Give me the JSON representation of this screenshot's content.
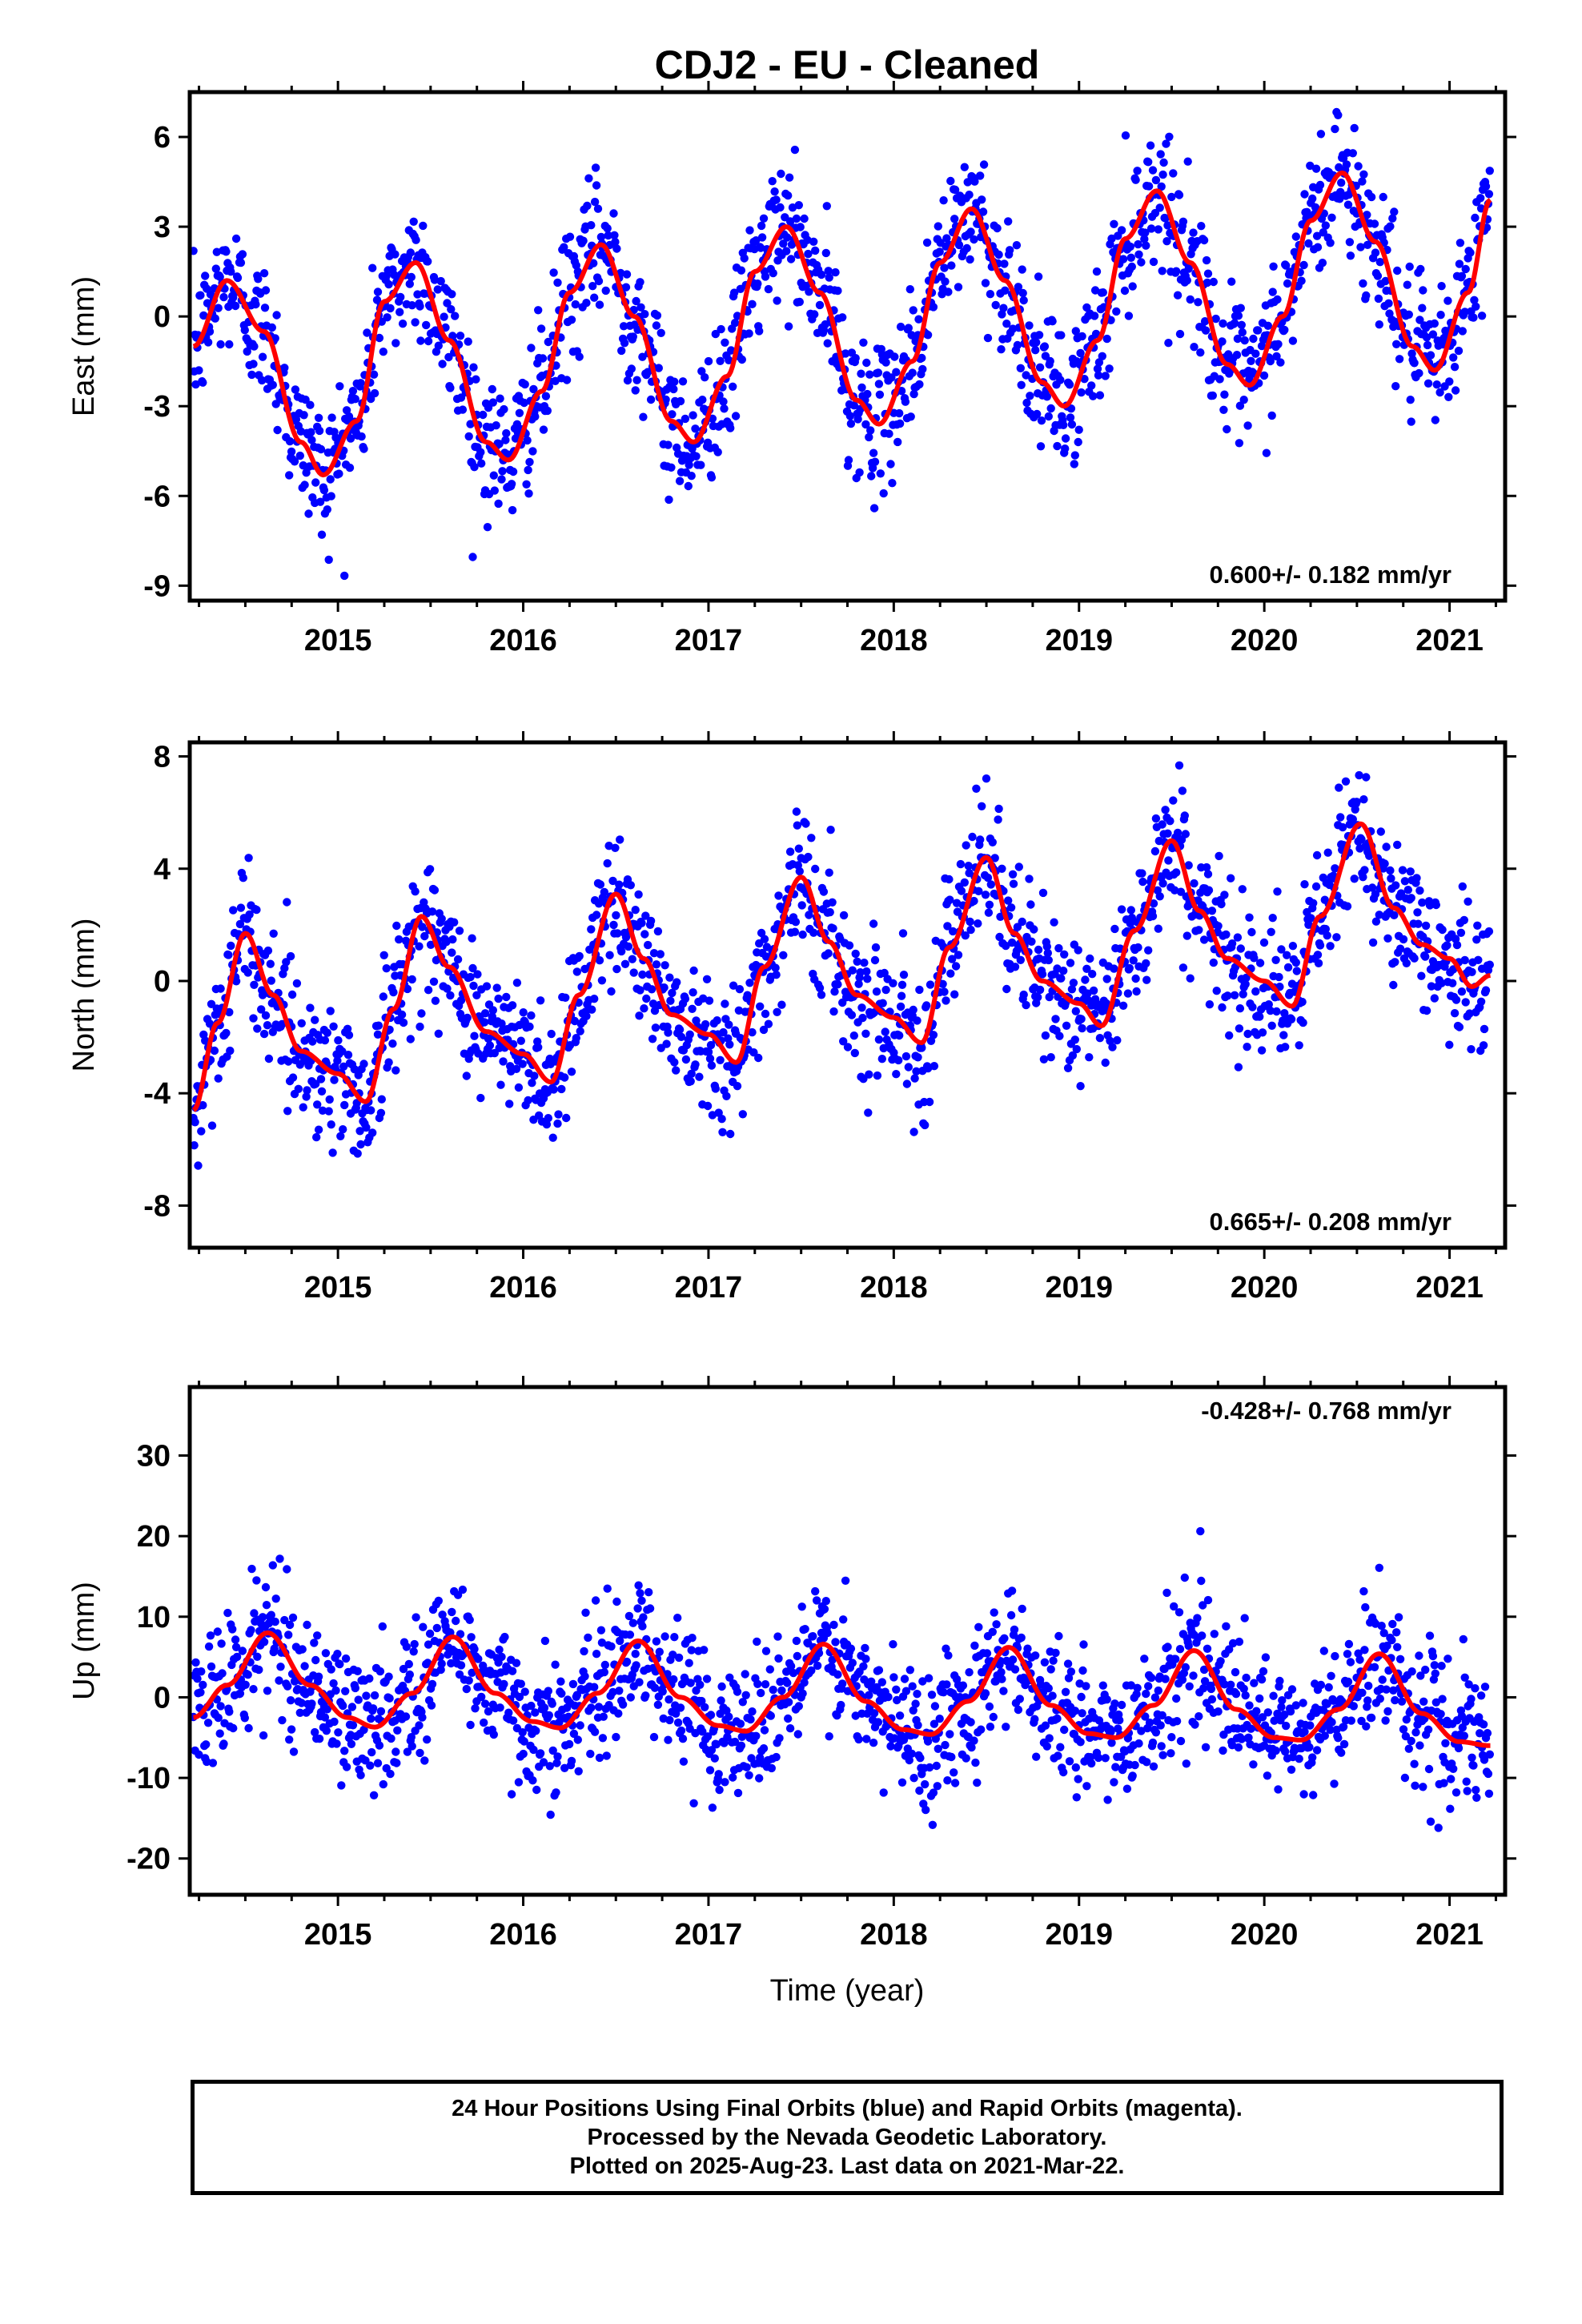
{
  "title": "CDJ2  - EU - Cleaned",
  "xlabel": "Time (year)",
  "footer": [
    "24 Hour Positions Using Final Orbits (blue) and Rapid Orbits (magenta).",
    "Processed by the Nevada Geodetic Laboratory.",
    "Plotted on 2025-Aug-23. Last data on 2021-Mar-22."
  ],
  "colors": {
    "points": "#0000ff",
    "fit": "#ff0000",
    "frame": "#000000"
  },
  "chart_data": [
    {
      "type": "scatter",
      "ylabel": "East (mm)",
      "rate_label": "0.600+/- 0.182 mm/yr",
      "xlim": [
        2014.2,
        2021.3
      ],
      "ylim": [
        -9.5,
        7.5
      ],
      "yticks": [
        6,
        3,
        0,
        -3,
        -6,
        -9
      ],
      "xticks": [
        2015,
        2016,
        2017,
        2018,
        2019,
        2020,
        2021
      ],
      "series": [
        {
          "values": [
            [
              2014.22,
              -1.0
            ],
            [
              2014.4,
              1.2
            ],
            [
              2014.6,
              -0.5
            ],
            [
              2014.8,
              -4.2
            ],
            [
              2014.92,
              -5.3
            ],
            [
              2015.1,
              -3.5
            ],
            [
              2015.25,
              0.5
            ],
            [
              2015.42,
              1.8
            ],
            [
              2015.6,
              -0.8
            ],
            [
              2015.8,
              -4.2
            ],
            [
              2015.92,
              -4.8
            ],
            [
              2016.1,
              -2.5
            ],
            [
              2016.25,
              0.8
            ],
            [
              2016.42,
              2.4
            ],
            [
              2016.6,
              0.0
            ],
            [
              2016.8,
              -3.5
            ],
            [
              2016.92,
              -4.2
            ],
            [
              2017.1,
              -2.0
            ],
            [
              2017.25,
              1.5
            ],
            [
              2017.42,
              3.0
            ],
            [
              2017.6,
              0.8
            ],
            [
              2017.8,
              -2.8
            ],
            [
              2017.92,
              -3.6
            ],
            [
              2018.1,
              -1.5
            ],
            [
              2018.25,
              1.8
            ],
            [
              2018.42,
              3.6
            ],
            [
              2018.6,
              1.2
            ],
            [
              2018.8,
              -2.2
            ],
            [
              2018.92,
              -3.0
            ],
            [
              2019.1,
              -0.8
            ],
            [
              2019.25,
              2.6
            ],
            [
              2019.42,
              4.2
            ],
            [
              2019.6,
              1.8
            ],
            [
              2019.8,
              -1.6
            ],
            [
              2019.92,
              -2.3
            ],
            [
              2020.1,
              0.0
            ],
            [
              2020.25,
              3.2
            ],
            [
              2020.42,
              4.8
            ],
            [
              2020.6,
              2.5
            ],
            [
              2020.8,
              -1.0
            ],
            [
              2020.92,
              -1.8
            ],
            [
              2021.1,
              0.8
            ],
            [
              2021.22,
              3.9
            ]
          ]
        }
      ]
    },
    {
      "type": "scatter",
      "ylabel": "North (mm)",
      "rate_label": "0.665+/- 0.208 mm/yr",
      "xlim": [
        2014.2,
        2021.3
      ],
      "ylim": [
        -9.5,
        8.5
      ],
      "yticks": [
        8,
        4,
        0,
        -4,
        -8
      ],
      "xticks": [
        2015,
        2016,
        2017,
        2018,
        2019,
        2020,
        2021
      ],
      "series": [
        {
          "values": [
            [
              2014.22,
              -4.6
            ],
            [
              2014.35,
              -1.5
            ],
            [
              2014.5,
              1.7
            ],
            [
              2014.65,
              -0.5
            ],
            [
              2014.8,
              -2.5
            ],
            [
              2015.0,
              -3.3
            ],
            [
              2015.15,
              -4.3
            ],
            [
              2015.3,
              -1.0
            ],
            [
              2015.45,
              2.3
            ],
            [
              2015.6,
              0.5
            ],
            [
              2015.8,
              -1.8
            ],
            [
              2016.0,
              -2.6
            ],
            [
              2016.15,
              -3.6
            ],
            [
              2016.3,
              -0.5
            ],
            [
              2016.5,
              3.1
            ],
            [
              2016.65,
              0.8
            ],
            [
              2016.8,
              -1.2
            ],
            [
              2017.0,
              -1.9
            ],
            [
              2017.15,
              -2.9
            ],
            [
              2017.3,
              0.5
            ],
            [
              2017.5,
              3.7
            ],
            [
              2017.65,
              1.4
            ],
            [
              2017.8,
              -0.5
            ],
            [
              2018.0,
              -1.3
            ],
            [
              2018.15,
              -2.2
            ],
            [
              2018.3,
              1.2
            ],
            [
              2018.5,
              4.4
            ],
            [
              2018.65,
              1.7
            ],
            [
              2018.8,
              0.0
            ],
            [
              2019.0,
              -0.8
            ],
            [
              2019.12,
              -1.6
            ],
            [
              2019.3,
              1.8
            ],
            [
              2019.5,
              5.0
            ],
            [
              2019.65,
              2.5
            ],
            [
              2019.8,
              0.8
            ],
            [
              2020.0,
              0.0
            ],
            [
              2020.15,
              -0.9
            ],
            [
              2020.3,
              2.3
            ],
            [
              2020.52,
              5.6
            ],
            [
              2020.7,
              2.6
            ],
            [
              2020.85,
              1.3
            ],
            [
              2021.0,
              0.8
            ],
            [
              2021.12,
              -0.2
            ],
            [
              2021.22,
              0.2
            ]
          ]
        }
      ]
    },
    {
      "type": "scatter",
      "ylabel": "Up (mm)",
      "rate_label": "-0.428+/- 0.768 mm/yr",
      "xlim": [
        2014.2,
        2021.3
      ],
      "ylim": [
        -24.5,
        38.5
      ],
      "yticks": [
        30,
        20,
        10,
        0,
        -10,
        -20
      ],
      "xticks": [
        2015,
        2016,
        2017,
        2018,
        2019,
        2020,
        2021
      ],
      "series": [
        {
          "values": [
            [
              2014.22,
              -2.5
            ],
            [
              2014.4,
              1.5
            ],
            [
              2014.62,
              8.0
            ],
            [
              2014.85,
              1.5
            ],
            [
              2015.05,
              -2.5
            ],
            [
              2015.2,
              -3.7
            ],
            [
              2015.4,
              0.5
            ],
            [
              2015.62,
              7.5
            ],
            [
              2015.85,
              0.5
            ],
            [
              2016.05,
              -3.0
            ],
            [
              2016.2,
              -3.8
            ],
            [
              2016.4,
              0.5
            ],
            [
              2016.62,
              7.0
            ],
            [
              2016.85,
              0.0
            ],
            [
              2017.05,
              -3.5
            ],
            [
              2017.2,
              -4.2
            ],
            [
              2017.4,
              0.0
            ],
            [
              2017.62,
              6.6
            ],
            [
              2017.85,
              -0.5
            ],
            [
              2018.05,
              -4.0
            ],
            [
              2018.2,
              -4.6
            ],
            [
              2018.4,
              -0.5
            ],
            [
              2018.62,
              6.2
            ],
            [
              2018.85,
              -1.0
            ],
            [
              2019.05,
              -4.5
            ],
            [
              2019.2,
              -5.0
            ],
            [
              2019.4,
              -1.0
            ],
            [
              2019.62,
              5.8
            ],
            [
              2019.85,
              -1.5
            ],
            [
              2020.05,
              -5.0
            ],
            [
              2020.2,
              -5.3
            ],
            [
              2020.4,
              -1.5
            ],
            [
              2020.62,
              5.4
            ],
            [
              2020.85,
              -2.0
            ],
            [
              2021.05,
              -5.5
            ],
            [
              2021.22,
              -6.0
            ]
          ]
        }
      ]
    }
  ]
}
